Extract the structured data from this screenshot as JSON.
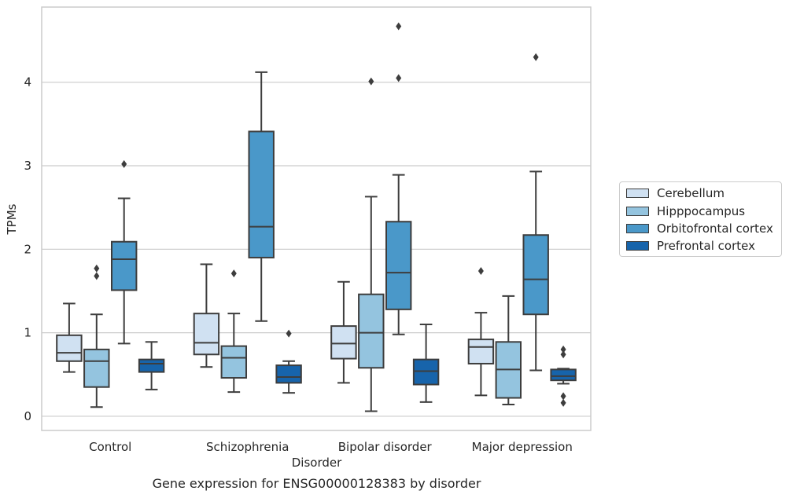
{
  "chart_data": {
    "type": "box",
    "title": "",
    "caption": "Gene expression for ENSG00000128383 by disorder",
    "xlabel": "Disorder",
    "ylabel": "TPMs",
    "ylim": [
      -0.17,
      4.9
    ],
    "yticks": [
      0,
      1,
      2,
      3,
      4
    ],
    "grid": "horizontal",
    "legend_position": "right",
    "categories": [
      "Control",
      "Schizophrenia",
      "Bipolar disorder",
      "Major depression"
    ],
    "series": [
      {
        "name": "Cerebellum",
        "color": "#d0e1f2",
        "boxes": [
          {
            "whisker_low": 0.53,
            "q1": 0.66,
            "median": 0.76,
            "q3": 0.97,
            "whisker_high": 1.35,
            "outliers": []
          },
          {
            "whisker_low": 0.59,
            "q1": 0.74,
            "median": 0.88,
            "q3": 1.23,
            "whisker_high": 1.82,
            "outliers": []
          },
          {
            "whisker_low": 0.4,
            "q1": 0.69,
            "median": 0.87,
            "q3": 1.08,
            "whisker_high": 1.61,
            "outliers": []
          },
          {
            "whisker_low": 0.25,
            "q1": 0.63,
            "median": 0.83,
            "q3": 0.92,
            "whisker_high": 1.24,
            "outliers": [
              1.74
            ]
          }
        ]
      },
      {
        "name": "Hipppocampus",
        "color": "#94c4df",
        "boxes": [
          {
            "whisker_low": 0.11,
            "q1": 0.35,
            "median": 0.66,
            "q3": 0.8,
            "whisker_high": 1.22,
            "outliers": [
              1.68,
              1.77
            ]
          },
          {
            "whisker_low": 0.29,
            "q1": 0.46,
            "median": 0.7,
            "q3": 0.84,
            "whisker_high": 1.23,
            "outliers": [
              1.71
            ]
          },
          {
            "whisker_low": 0.06,
            "q1": 0.58,
            "median": 1.0,
            "q3": 1.46,
            "whisker_high": 2.63,
            "outliers": [
              4.01
            ]
          },
          {
            "whisker_low": 0.14,
            "q1": 0.22,
            "median": 0.56,
            "q3": 0.89,
            "whisker_high": 1.44,
            "outliers": []
          }
        ]
      },
      {
        "name": "Orbitofrontal cortex",
        "color": "#4a98c9",
        "boxes": [
          {
            "whisker_low": 0.87,
            "q1": 1.51,
            "median": 1.88,
            "q3": 2.09,
            "whisker_high": 2.61,
            "outliers": [
              3.02
            ]
          },
          {
            "whisker_low": 1.14,
            "q1": 1.9,
            "median": 2.27,
            "q3": 3.41,
            "whisker_high": 4.12,
            "outliers": []
          },
          {
            "whisker_low": 0.98,
            "q1": 1.28,
            "median": 1.72,
            "q3": 2.33,
            "whisker_high": 2.89,
            "outliers": [
              4.05,
              4.67
            ]
          },
          {
            "whisker_low": 0.55,
            "q1": 1.22,
            "median": 1.64,
            "q3": 2.17,
            "whisker_high": 2.93,
            "outliers": [
              4.3
            ]
          }
        ]
      },
      {
        "name": "Prefrontal cortex",
        "color": "#1764ab",
        "boxes": [
          {
            "whisker_low": 0.32,
            "q1": 0.53,
            "median": 0.63,
            "q3": 0.68,
            "whisker_high": 0.89,
            "outliers": []
          },
          {
            "whisker_low": 0.28,
            "q1": 0.4,
            "median": 0.47,
            "q3": 0.61,
            "whisker_high": 0.66,
            "outliers": [
              0.99
            ]
          },
          {
            "whisker_low": 0.17,
            "q1": 0.38,
            "median": 0.54,
            "q3": 0.68,
            "whisker_high": 1.1,
            "outliers": []
          },
          {
            "whisker_low": 0.39,
            "q1": 0.43,
            "median": 0.48,
            "q3": 0.56,
            "whisker_high": 0.57,
            "outliers": [
              0.16,
              0.24,
              0.74,
              0.8
            ]
          }
        ]
      }
    ]
  }
}
